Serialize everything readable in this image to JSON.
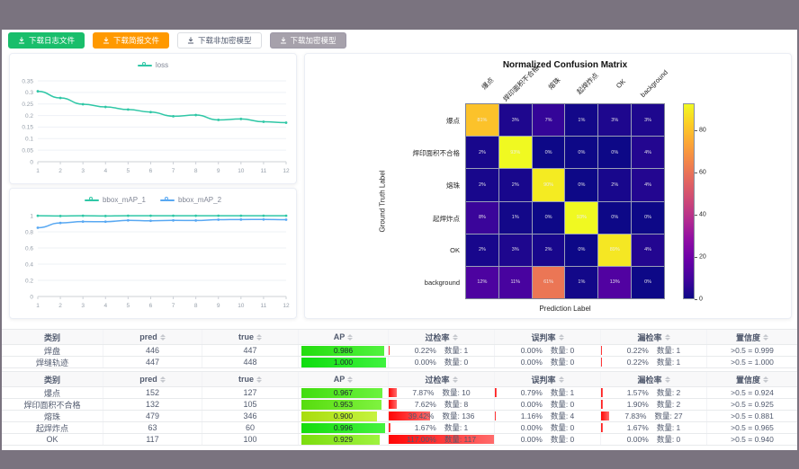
{
  "toolbar": {
    "buttons": [
      {
        "name": "download-log-button",
        "label": "下载日志文件",
        "variant": "success"
      },
      {
        "name": "download-report-button",
        "label": "下载简报文件",
        "variant": "warning"
      },
      {
        "name": "download-plain-model-button",
        "label": "下载非加密模型",
        "variant": "default"
      },
      {
        "name": "download-encrypted-model-button",
        "label": "下载加密模型",
        "variant": "gray"
      }
    ]
  },
  "chart_data": [
    {
      "id": "loss",
      "type": "line",
      "x": [
        1,
        2,
        3,
        4,
        5,
        6,
        7,
        8,
        9,
        10,
        11,
        12
      ],
      "series": [
        {
          "name": "loss",
          "color": "#2fc7a6",
          "values": [
            0.305,
            0.276,
            0.249,
            0.237,
            0.226,
            0.215,
            0.197,
            0.202,
            0.181,
            0.185,
            0.173,
            0.169
          ]
        }
      ],
      "ylim": [
        0,
        0.35
      ],
      "yticks": [
        0,
        0.05,
        0.1,
        0.15,
        0.2,
        0.25,
        0.3,
        0.35
      ],
      "grid": true,
      "legend_position": "top"
    },
    {
      "id": "bbox_map",
      "type": "line",
      "x": [
        1,
        2,
        3,
        4,
        5,
        6,
        7,
        8,
        9,
        10,
        11,
        12
      ],
      "series": [
        {
          "name": "bbox_mAP_1",
          "color": "#2fc7a6",
          "values": [
            0.998,
            0.996,
            0.998,
            0.996,
            0.999,
            0.999,
            0.999,
            0.998,
            0.999,
            0.999,
            0.999,
            0.999
          ]
        },
        {
          "name": "bbox_mAP_2",
          "color": "#58a8f2",
          "values": [
            0.85,
            0.91,
            0.926,
            0.925,
            0.942,
            0.936,
            0.941,
            0.94,
            0.95,
            0.952,
            0.953,
            0.95
          ]
        }
      ],
      "ylim": [
        0,
        1
      ],
      "yticks": [
        0,
        0.2,
        0.4,
        0.6,
        0.8,
        1
      ],
      "grid": true,
      "legend_position": "top"
    },
    {
      "id": "confusion_matrix",
      "type": "heatmap",
      "title": "Normalized Confusion Matrix",
      "xlabel": "Prediction Label",
      "ylabel": "Ground Truth Label",
      "labels": [
        "爆点",
        "焊印面积不合格",
        "熔珠",
        "起焊炸点",
        "OK",
        "background"
      ],
      "matrix_percent": [
        [
          81,
          3,
          7,
          1,
          3,
          3
        ],
        [
          2,
          93,
          0,
          0,
          0,
          4
        ],
        [
          2,
          2,
          90,
          0,
          2,
          4
        ],
        [
          8,
          1,
          0,
          93,
          0,
          0
        ],
        [
          2,
          3,
          2,
          0,
          89,
          4
        ],
        [
          12,
          11,
          61,
          1,
          13,
          0
        ]
      ],
      "vmax": 93,
      "colormap": "plasma",
      "colorbar_ticks": [
        0,
        20,
        40,
        60,
        80
      ]
    }
  ],
  "tables": [
    {
      "headers": [
        {
          "label": "类别",
          "sortable": false
        },
        {
          "label": "pred",
          "sortable": true
        },
        {
          "label": "true",
          "sortable": true
        },
        {
          "label": "AP",
          "sortable": true
        },
        {
          "label": "过检率",
          "sortable": true
        },
        {
          "label": "误判率",
          "sortable": true
        },
        {
          "label": "漏检率",
          "sortable": true
        },
        {
          "label": "置信度",
          "sortable": true
        }
      ],
      "rows": [
        {
          "label": "焊盘",
          "pred": "446",
          "true": "447",
          "ap": "0.986",
          "ap_value": 0.986,
          "over_rate": "0.22%",
          "over_count": "数量: 1",
          "over_width": 0.22,
          "false_rate": "0.00%",
          "false_count": "数量: 0",
          "false_width": 0,
          "miss_rate": "0.22%",
          "miss_count": "数量: 1",
          "miss_width": 0.22,
          "confidence": ">0.5 = 0.999"
        },
        {
          "label": "焊缝轨迹",
          "pred": "447",
          "true": "448",
          "ap": "1.000",
          "ap_value": 1.0,
          "over_rate": "0.00%",
          "over_count": "数量: 0",
          "over_width": 0,
          "false_rate": "0.00%",
          "false_count": "数量: 0",
          "false_width": 0,
          "miss_rate": "0.22%",
          "miss_count": "数量: 1",
          "miss_width": 0.22,
          "confidence": ">0.5 = 1.000"
        }
      ]
    },
    {
      "headers": [
        {
          "label": "类别",
          "sortable": false
        },
        {
          "label": "pred",
          "sortable": true
        },
        {
          "label": "true",
          "sortable": true
        },
        {
          "label": "AP",
          "sortable": true
        },
        {
          "label": "过检率",
          "sortable": true
        },
        {
          "label": "误判率",
          "sortable": true
        },
        {
          "label": "漏检率",
          "sortable": true
        },
        {
          "label": "置信度",
          "sortable": true
        }
      ],
      "rows": [
        {
          "label": "爆点",
          "pred": "152",
          "true": "127",
          "ap": "0.967",
          "ap_value": 0.967,
          "over_rate": "7.87%",
          "over_count": "数量: 10",
          "over_width": 7.87,
          "false_rate": "0.79%",
          "false_count": "数量: 1",
          "false_width": 0.79,
          "miss_rate": "1.57%",
          "miss_count": "数量: 2",
          "miss_width": 1.57,
          "confidence": ">0.5 = 0.924"
        },
        {
          "label": "焊印面积不合格",
          "pred": "132",
          "true": "105",
          "ap": "0.953",
          "ap_value": 0.953,
          "over_rate": "7.62%",
          "over_count": "数量: 8",
          "over_width": 7.62,
          "false_rate": "0.00%",
          "false_count": "数量: 0",
          "false_width": 0,
          "miss_rate": "1.90%",
          "miss_count": "数量: 2",
          "miss_width": 1.9,
          "confidence": ">0.5 = 0.925"
        },
        {
          "label": "熔珠",
          "pred": "479",
          "true": "346",
          "ap": "0.900",
          "ap_value": 0.9,
          "over_rate": "39.42%",
          "over_count": "数量: 136",
          "over_width": 39.42,
          "false_rate": "1.16%",
          "false_count": "数量: 4",
          "false_width": 1.16,
          "miss_rate": "7.83%",
          "miss_count": "数量: 27",
          "miss_width": 7.83,
          "confidence": ">0.5 = 0.881"
        },
        {
          "label": "起焊炸点",
          "pred": "63",
          "true": "60",
          "ap": "0.996",
          "ap_value": 0.996,
          "over_rate": "1.67%",
          "over_count": "数量: 1",
          "over_width": 1.67,
          "false_rate": "0.00%",
          "false_count": "数量: 0",
          "false_width": 0,
          "miss_rate": "1.67%",
          "miss_count": "数量: 1",
          "miss_width": 1.67,
          "confidence": ">0.5 = 0.965"
        },
        {
          "label": "OK",
          "pred": "117",
          "true": "100",
          "ap": "0.929",
          "ap_value": 0.929,
          "over_rate": "117.00%",
          "over_count": "数量: 117",
          "over_width": 117,
          "false_rate": "0.00%",
          "false_count": "数量: 0",
          "false_width": 0,
          "miss_rate": "0.00%",
          "miss_count": "数量: 0",
          "miss_width": 0,
          "confidence": ">0.5 = 0.940"
        }
      ]
    }
  ]
}
